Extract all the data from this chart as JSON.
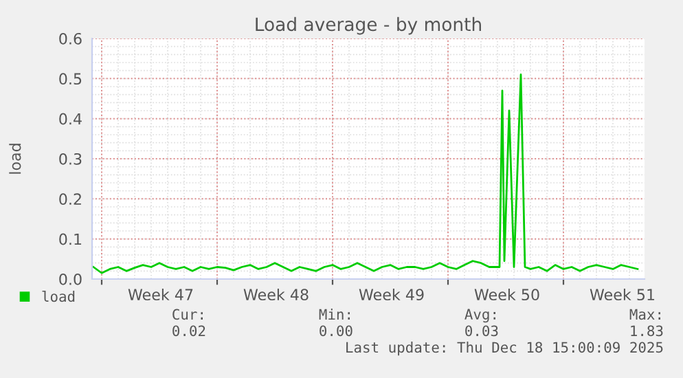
{
  "chart_data": {
    "type": "line",
    "title": "Load average - by month",
    "ylabel": "load",
    "x": [
      "2025-11-16T12:00",
      "2025-11-17T00:00",
      "2025-11-17T12:00",
      "2025-11-18T00:00",
      "2025-11-18T12:00",
      "2025-11-19T00:00",
      "2025-11-19T12:00",
      "2025-11-20T00:00",
      "2025-11-20T12:00",
      "2025-11-21T00:00",
      "2025-11-21T12:00",
      "2025-11-22T00:00",
      "2025-11-22T12:00",
      "2025-11-23T00:00",
      "2025-11-23T12:00",
      "2025-11-24T00:00",
      "2025-11-24T12:00",
      "2025-11-25T00:00",
      "2025-11-25T12:00",
      "2025-11-26T00:00",
      "2025-11-26T12:00",
      "2025-11-27T00:00",
      "2025-11-27T12:00",
      "2025-11-28T00:00",
      "2025-11-28T12:00",
      "2025-11-29T00:00",
      "2025-11-29T12:00",
      "2025-11-30T00:00",
      "2025-11-30T12:00",
      "2025-12-01T00:00",
      "2025-12-01T12:00",
      "2025-12-02T00:00",
      "2025-12-02T12:00",
      "2025-12-03T00:00",
      "2025-12-03T12:00",
      "2025-12-04T00:00",
      "2025-12-04T12:00",
      "2025-12-05T00:00",
      "2025-12-05T12:00",
      "2025-12-06T00:00",
      "2025-12-06T12:00",
      "2025-12-07T00:00",
      "2025-12-07T12:00",
      "2025-12-08T00:00",
      "2025-12-08T12:00",
      "2025-12-09T00:00",
      "2025-12-09T12:00",
      "2025-12-10T00:00",
      "2025-12-10T12:00",
      "2025-12-11T03:00",
      "2025-12-11T07:00",
      "2025-12-11T10:00",
      "2025-12-11T17:00",
      "2025-12-12T00:00",
      "2025-12-12T10:00",
      "2025-12-12T16:00",
      "2025-12-13T00:00",
      "2025-12-13T12:00",
      "2025-12-14T00:00",
      "2025-12-14T12:00",
      "2025-12-15T00:00",
      "2025-12-15T12:00",
      "2025-12-16T00:00",
      "2025-12-16T12:00",
      "2025-12-17T00:00",
      "2025-12-17T12:00",
      "2025-12-18T00:00",
      "2025-12-18T12:00",
      "2025-12-19T00:00",
      "2025-12-19T12:00"
    ],
    "series": [
      {
        "name": "load",
        "color": "#00cc00",
        "values": [
          0.03,
          0.015,
          0.025,
          0.03,
          0.02,
          0.028,
          0.035,
          0.03,
          0.04,
          0.03,
          0.025,
          0.03,
          0.02,
          0.03,
          0.025,
          0.03,
          0.028,
          0.022,
          0.03,
          0.035,
          0.025,
          0.03,
          0.04,
          0.03,
          0.02,
          0.03,
          0.025,
          0.02,
          0.03,
          0.035,
          0.025,
          0.03,
          0.04,
          0.03,
          0.02,
          0.03,
          0.035,
          0.025,
          0.03,
          0.03,
          0.025,
          0.03,
          0.04,
          0.03,
          0.025,
          0.035,
          0.045,
          0.04,
          0.03,
          0.03,
          0.47,
          0.045,
          0.42,
          0.03,
          0.51,
          0.03,
          0.025,
          0.03,
          0.02,
          0.035,
          0.025,
          0.03,
          0.02,
          0.03,
          0.035,
          0.03,
          0.025,
          0.035,
          0.03,
          0.025
        ]
      }
    ],
    "xlim": [
      "2025-11-16T10:00",
      "2025-12-19T22:00"
    ],
    "xticks": [
      {
        "value": "2025-11-17",
        "label": null
      },
      {
        "value": "2025-11-24",
        "label": null
      },
      {
        "value": "2025-12-01",
        "label": null
      },
      {
        "value": "2025-12-08",
        "label": null
      },
      {
        "value": "2025-12-15",
        "label": null
      },
      {
        "value": "2025-11-20T14:00",
        "label": "Week 47"
      },
      {
        "value": "2025-11-27T14:00",
        "label": "Week 48"
      },
      {
        "value": "2025-12-04T14:00",
        "label": "Week 49"
      },
      {
        "value": "2025-12-11T14:00",
        "label": "Week 50"
      },
      {
        "value": "2025-12-18T14:00",
        "label": "Week 51"
      }
    ],
    "ylim": [
      0,
      0.6
    ],
    "yticks": [
      {
        "value": 0,
        "label": "0.0"
      },
      0.1,
      0.2,
      0.3,
      0.4,
      0.5,
      0.6
    ],
    "grid": true,
    "legend": "bottom",
    "marker": "none",
    "line_style": "solid",
    "annotations": [
      "Cur:",
      "Min:",
      "Avg:",
      "Max:",
      "0.02",
      "0.00",
      "0.03",
      "1.83",
      "Last update: Thu Dec 18 15:00:09 2025"
    ]
  }
}
